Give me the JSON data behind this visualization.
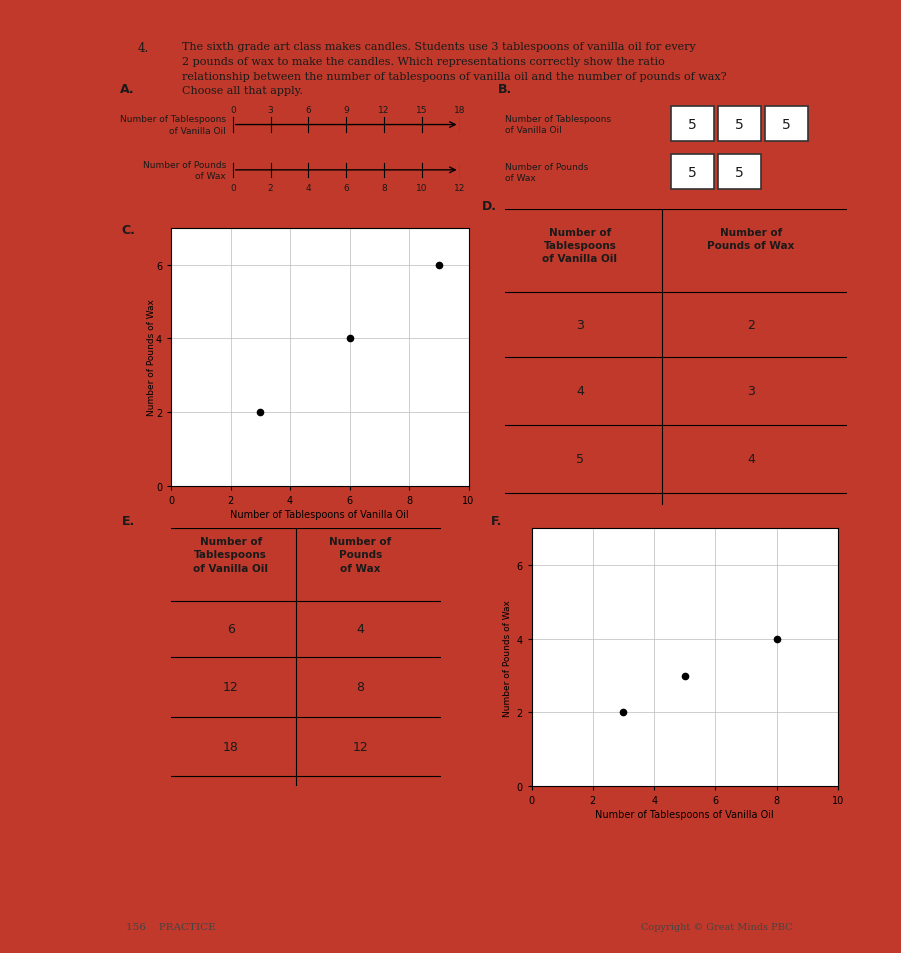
{
  "bg_color": "#c0392b",
  "paper_color": "#f2efe8",
  "title_number": "4.",
  "title_text": "The sixth grade art class makes candles. Students use 3 tablespoons of vanilla oil for every\n2 pounds of wax to make the candles. Which representations correctly show the ratio\nrelationship between the number of tablespoons of vanilla oil and the number of pounds of wax?\nChoose all that apply.",
  "section_A": {
    "label": "A.",
    "top_label": "Number of Tablespoons\nof Vanilla Oil",
    "bottom_label": "Number of Pounds\nof Wax",
    "top_ticks": [
      0,
      3,
      6,
      9,
      12,
      15,
      18
    ],
    "bottom_ticks": [
      0,
      2,
      4,
      6,
      8,
      10,
      12
    ]
  },
  "section_B": {
    "label": "B.",
    "row1_label": "Number of Tablespoons\nof Vanilla Oil",
    "row1_values": [
      "5",
      "5",
      "5"
    ],
    "row2_label": "Number of Pounds\nof Wax",
    "row2_values": [
      "5",
      "5"
    ]
  },
  "section_C": {
    "label": "C.",
    "xlabel": "Number of Tablespoons of Vanilla Oil",
    "ylabel": "Number of Pounds of Wax",
    "points": [
      [
        3,
        2
      ],
      [
        6,
        4
      ],
      [
        9,
        6
      ]
    ],
    "xlim": [
      0,
      10
    ],
    "ylim": [
      0,
      7
    ],
    "xticks": [
      0,
      2,
      4,
      6,
      8,
      10
    ],
    "yticks": [
      0,
      2,
      4,
      6
    ]
  },
  "section_D": {
    "label": "D.",
    "col1_header": "Number of\nTablespoons\nof Vanilla Oil",
    "col2_header": "Number of\nPounds of Wax",
    "rows": [
      [
        "3",
        "2"
      ],
      [
        "4",
        "3"
      ],
      [
        "5",
        "4"
      ]
    ]
  },
  "section_E": {
    "label": "E.",
    "col1_header": "Number of\nTablespoons\nof Vanilla Oil",
    "col2_header": "Number of\nPounds\nof Wax",
    "rows": [
      [
        "6",
        "4"
      ],
      [
        "12",
        "8"
      ],
      [
        "18",
        "12"
      ]
    ]
  },
  "section_F": {
    "label": "F.",
    "xlabel": "Number of Tablespoons of Vanilla Oil",
    "ylabel": "Number of Pounds of Wax",
    "points": [
      [
        3,
        2
      ],
      [
        5,
        3
      ],
      [
        8,
        4
      ]
    ],
    "xlim": [
      0,
      10
    ],
    "ylim": [
      0,
      7
    ],
    "xticks": [
      0,
      2,
      4,
      6,
      8,
      10
    ],
    "yticks": [
      0,
      2,
      4,
      6
    ]
  },
  "footer_left": "156    PRACTICE",
  "footer_right": "Copyright © Great Minds PBC"
}
